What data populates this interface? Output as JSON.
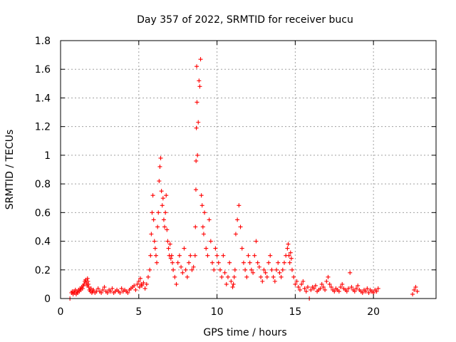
{
  "chart_data": {
    "type": "scatter",
    "title": "Day 357 of 2022, SRMTID for receiver bucu",
    "xlabel": "GPS time / hours",
    "ylabel": "SRMTID / TECUs",
    "xlim": [
      0,
      24
    ],
    "ylim": [
      0,
      1.8
    ],
    "xticks": [
      0,
      5,
      10,
      15,
      20
    ],
    "xtick_labels": [
      "0",
      "5",
      "10",
      "15",
      "20"
    ],
    "yticks": [
      0,
      0.2,
      0.4,
      0.6,
      0.8,
      1.0,
      1.2,
      1.4,
      1.6,
      1.8
    ],
    "ytick_labels": [
      "0",
      "0.2",
      "0.4",
      "0.6",
      "0.8",
      "1",
      "1.2",
      "1.4",
      "1.6",
      "1.8"
    ],
    "grid": true,
    "marker": "+",
    "series": [
      {
        "name": "SRMTID",
        "color": "#ff0000",
        "x": [
          0.6,
          0.7,
          0.75,
          0.8,
          0.85,
          0.9,
          0.95,
          1.0,
          1.05,
          1.1,
          1.15,
          1.2,
          1.25,
          1.3,
          1.35,
          1.4,
          1.45,
          1.5,
          1.55,
          1.6,
          1.65,
          1.7,
          1.72,
          1.75,
          1.78,
          1.8,
          1.85,
          1.9,
          1.95,
          2.0,
          2.05,
          2.1,
          2.2,
          2.3,
          2.4,
          2.5,
          2.6,
          2.7,
          2.8,
          2.9,
          3.0,
          3.1,
          3.2,
          3.3,
          3.4,
          3.5,
          3.6,
          3.7,
          3.8,
          3.9,
          4.0,
          4.1,
          4.2,
          4.3,
          4.4,
          4.5,
          4.6,
          4.7,
          4.8,
          4.9,
          5.0,
          5.05,
          5.1,
          5.15,
          5.2,
          5.3,
          5.4,
          5.5,
          5.6,
          5.7,
          5.75,
          5.8,
          5.85,
          5.9,
          5.95,
          6.0,
          6.05,
          6.1,
          6.15,
          6.2,
          6.25,
          6.3,
          6.35,
          6.4,
          6.45,
          6.5,
          6.55,
          6.6,
          6.65,
          6.7,
          6.75,
          6.8,
          6.85,
          6.9,
          6.95,
          7.0,
          7.05,
          7.1,
          7.15,
          7.2,
          7.3,
          7.4,
          7.5,
          7.6,
          7.7,
          7.8,
          7.9,
          8.0,
          8.1,
          8.2,
          8.3,
          8.4,
          8.5,
          8.6,
          8.62,
          8.65,
          8.66,
          8.68,
          8.7,
          8.72,
          8.75,
          8.8,
          8.85,
          8.9,
          8.95,
          9.0,
          9.05,
          9.1,
          9.15,
          9.2,
          9.3,
          9.4,
          9.5,
          9.6,
          9.7,
          9.8,
          9.9,
          10.0,
          10.1,
          10.2,
          10.3,
          10.4,
          10.5,
          10.6,
          10.7,
          10.8,
          10.9,
          11.0,
          11.05,
          11.1,
          11.15,
          11.2,
          11.3,
          11.4,
          11.5,
          11.6,
          11.7,
          11.8,
          11.9,
          12.0,
          12.1,
          12.2,
          12.3,
          12.4,
          12.5,
          12.6,
          12.7,
          12.8,
          12.9,
          13.0,
          13.1,
          13.2,
          13.3,
          13.4,
          13.5,
          13.6,
          13.7,
          13.8,
          13.9,
          14.0,
          14.1,
          14.2,
          14.3,
          14.4,
          14.5,
          14.55,
          14.6,
          14.65,
          14.7,
          14.75,
          14.8,
          14.9,
          15.0,
          15.1,
          15.2,
          15.3,
          15.4,
          15.5,
          15.6,
          15.7,
          15.8,
          15.9,
          16.0,
          16.1,
          16.2,
          16.3,
          16.4,
          16.5,
          16.6,
          16.7,
          16.8,
          16.9,
          17.0,
          17.1,
          17.2,
          17.3,
          17.4,
          17.5,
          17.6,
          17.7,
          17.8,
          17.9,
          18.0,
          18.1,
          18.2,
          18.3,
          18.4,
          18.5,
          18.6,
          18.7,
          18.8,
          18.9,
          19.0,
          19.1,
          19.2,
          19.3,
          19.4,
          19.5,
          19.6,
          19.7,
          19.8,
          19.9,
          20.0,
          20.1,
          20.2,
          20.3,
          22.5,
          22.6,
          22.7,
          22.8
        ],
        "y": [
          0.0,
          0.04,
          0.05,
          0.03,
          0.05,
          0.04,
          0.06,
          0.03,
          0.05,
          0.04,
          0.06,
          0.05,
          0.07,
          0.06,
          0.08,
          0.07,
          0.09,
          0.1,
          0.12,
          0.13,
          0.11,
          0.09,
          0.14,
          0.12,
          0.1,
          0.08,
          0.06,
          0.05,
          0.07,
          0.04,
          0.05,
          0.06,
          0.04,
          0.05,
          0.07,
          0.05,
          0.04,
          0.06,
          0.08,
          0.05,
          0.04,
          0.06,
          0.05,
          0.07,
          0.04,
          0.05,
          0.06,
          0.05,
          0.04,
          0.07,
          0.05,
          0.06,
          0.05,
          0.04,
          0.06,
          0.07,
          0.08,
          0.09,
          0.06,
          0.1,
          0.12,
          0.08,
          0.14,
          0.1,
          0.09,
          0.11,
          0.07,
          0.1,
          0.15,
          0.2,
          0.3,
          0.45,
          0.6,
          0.72,
          0.55,
          0.4,
          0.35,
          0.3,
          0.25,
          0.5,
          0.6,
          0.82,
          0.92,
          0.98,
          0.75,
          0.65,
          0.7,
          0.55,
          0.5,
          0.6,
          0.72,
          0.48,
          0.4,
          0.35,
          0.3,
          0.38,
          0.28,
          0.3,
          0.25,
          0.2,
          0.15,
          0.1,
          0.25,
          0.3,
          0.22,
          0.18,
          0.35,
          0.2,
          0.15,
          0.25,
          0.3,
          0.2,
          0.22,
          0.3,
          0.5,
          0.76,
          0.96,
          1.19,
          1.62,
          1.37,
          1.0,
          1.23,
          1.52,
          1.48,
          1.67,
          0.72,
          0.65,
          0.5,
          0.45,
          0.6,
          0.35,
          0.3,
          0.55,
          0.4,
          0.25,
          0.2,
          0.35,
          0.3,
          0.25,
          0.2,
          0.15,
          0.3,
          0.18,
          0.1,
          0.15,
          0.25,
          0.12,
          0.08,
          0.1,
          0.15,
          0.2,
          0.45,
          0.55,
          0.65,
          0.5,
          0.35,
          0.25,
          0.2,
          0.15,
          0.3,
          0.25,
          0.2,
          0.18,
          0.3,
          0.4,
          0.25,
          0.22,
          0.15,
          0.12,
          0.2,
          0.18,
          0.15,
          0.25,
          0.3,
          0.2,
          0.15,
          0.12,
          0.2,
          0.25,
          0.18,
          0.15,
          0.2,
          0.25,
          0.3,
          0.35,
          0.38,
          0.3,
          0.25,
          0.32,
          0.28,
          0.2,
          0.15,
          0.1,
          0.12,
          0.08,
          0.06,
          0.1,
          0.12,
          0.07,
          0.05,
          0.08,
          0.0,
          0.06,
          0.08,
          0.07,
          0.09,
          0.05,
          0.06,
          0.07,
          0.1,
          0.08,
          0.06,
          0.12,
          0.15,
          0.1,
          0.08,
          0.06,
          0.05,
          0.07,
          0.06,
          0.05,
          0.08,
          0.1,
          0.07,
          0.06,
          0.05,
          0.07,
          0.18,
          0.08,
          0.06,
          0.05,
          0.07,
          0.09,
          0.06,
          0.05,
          0.04,
          0.06,
          0.05,
          0.07,
          0.04,
          0.06,
          0.05,
          0.04,
          0.06,
          0.05,
          0.07,
          0.03,
          0.06,
          0.08,
          0.05
        ]
      }
    ]
  }
}
